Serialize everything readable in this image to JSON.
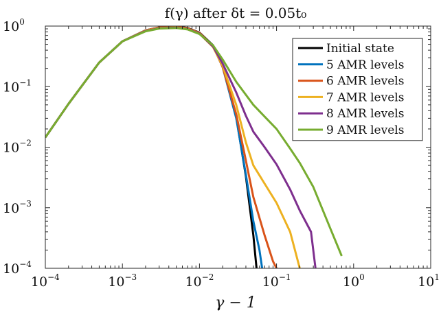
{
  "chart_data": {
    "type": "line",
    "title": "f(γ) after δt = 0.05t₀",
    "xlabel": "γ − 1",
    "ylabel": "",
    "xscale": "log",
    "yscale": "log",
    "xlim": [
      0.0001,
      10
    ],
    "ylim": [
      0.0001,
      1
    ],
    "grid": false,
    "legend_position": "top-right",
    "xticks": [
      {
        "base": "10",
        "exp": "−4"
      },
      {
        "base": "10",
        "exp": "−3"
      },
      {
        "base": "10",
        "exp": "−2"
      },
      {
        "base": "10",
        "exp": "−1"
      },
      {
        "base": "10",
        "exp": "0"
      },
      {
        "base": "10",
        "exp": "1"
      }
    ],
    "yticks": [
      {
        "base": "10",
        "exp": "0"
      },
      {
        "base": "10",
        "exp": "−1"
      },
      {
        "base": "10",
        "exp": "−2"
      },
      {
        "base": "10",
        "exp": "−3"
      },
      {
        "base": "10",
        "exp": "−4"
      }
    ],
    "series": [
      {
        "name": "Initial state",
        "color": "#000000",
        "points": [
          [
            0.0001,
            0.0145
          ],
          [
            0.0002,
            0.052
          ],
          [
            0.0005,
            0.25
          ],
          [
            0.001,
            0.56
          ],
          [
            0.002,
            0.85
          ],
          [
            0.003,
            0.95
          ],
          [
            0.005,
            0.985
          ],
          [
            0.007,
            0.93
          ],
          [
            0.01,
            0.78
          ],
          [
            0.015,
            0.48
          ],
          [
            0.02,
            0.22
          ],
          [
            0.03,
            0.032
          ],
          [
            0.04,
            0.0033
          ],
          [
            0.05,
            0.00035
          ],
          [
            0.055,
            0.0001
          ]
        ]
      },
      {
        "name": "5 AMR levels",
        "color": "#0072BD",
        "points": [
          [
            0.0001,
            0.0145
          ],
          [
            0.0002,
            0.052
          ],
          [
            0.0005,
            0.25
          ],
          [
            0.001,
            0.56
          ],
          [
            0.002,
            0.85
          ],
          [
            0.003,
            0.94
          ],
          [
            0.005,
            0.975
          ],
          [
            0.007,
            0.92
          ],
          [
            0.01,
            0.77
          ],
          [
            0.015,
            0.47
          ],
          [
            0.02,
            0.21
          ],
          [
            0.03,
            0.03
          ],
          [
            0.04,
            0.0035
          ],
          [
            0.05,
            0.0006
          ],
          [
            0.06,
            0.0002
          ],
          [
            0.065,
            0.0001
          ]
        ]
      },
      {
        "name": "6 AMR levels",
        "color": "#D95319",
        "points": [
          [
            0.0001,
            0.0145
          ],
          [
            0.0002,
            0.052
          ],
          [
            0.0005,
            0.25
          ],
          [
            0.001,
            0.56
          ],
          [
            0.002,
            0.85
          ],
          [
            0.003,
            0.95
          ],
          [
            0.005,
            0.98
          ],
          [
            0.007,
            0.92
          ],
          [
            0.01,
            0.77
          ],
          [
            0.015,
            0.47
          ],
          [
            0.02,
            0.21
          ],
          [
            0.03,
            0.035
          ],
          [
            0.04,
            0.006
          ],
          [
            0.05,
            0.0015
          ],
          [
            0.07,
            0.00035
          ],
          [
            0.09,
            0.00013
          ],
          [
            0.1,
            0.0001
          ]
        ]
      },
      {
        "name": "7 AMR levels",
        "color": "#EDB120",
        "points": [
          [
            0.0001,
            0.0145
          ],
          [
            0.0002,
            0.052
          ],
          [
            0.0005,
            0.25
          ],
          [
            0.001,
            0.56
          ],
          [
            0.002,
            0.84
          ],
          [
            0.003,
            0.93
          ],
          [
            0.005,
            0.95
          ],
          [
            0.007,
            0.9
          ],
          [
            0.01,
            0.75
          ],
          [
            0.015,
            0.45
          ],
          [
            0.02,
            0.22
          ],
          [
            0.03,
            0.05
          ],
          [
            0.04,
            0.012
          ],
          [
            0.05,
            0.005
          ],
          [
            0.07,
            0.0025
          ],
          [
            0.1,
            0.0012
          ],
          [
            0.15,
            0.0004
          ],
          [
            0.2,
            0.0001
          ]
        ]
      },
      {
        "name": "8 AMR levels",
        "color": "#7E2F8E",
        "points": [
          [
            0.0001,
            0.0145
          ],
          [
            0.0002,
            0.052
          ],
          [
            0.0005,
            0.25
          ],
          [
            0.001,
            0.56
          ],
          [
            0.002,
            0.83
          ],
          [
            0.003,
            0.92
          ],
          [
            0.005,
            0.94
          ],
          [
            0.007,
            0.89
          ],
          [
            0.01,
            0.75
          ],
          [
            0.015,
            0.46
          ],
          [
            0.02,
            0.24
          ],
          [
            0.03,
            0.08
          ],
          [
            0.04,
            0.033
          ],
          [
            0.05,
            0.018
          ],
          [
            0.07,
            0.01
          ],
          [
            0.1,
            0.0052
          ],
          [
            0.15,
            0.002
          ],
          [
            0.2,
            0.0009
          ],
          [
            0.28,
            0.0004
          ],
          [
            0.32,
            0.0001
          ]
        ]
      },
      {
        "name": "9 AMR levels",
        "color": "#77AC30",
        "points": [
          [
            0.0001,
            0.0145
          ],
          [
            0.0002,
            0.052
          ],
          [
            0.0005,
            0.25
          ],
          [
            0.001,
            0.56
          ],
          [
            0.002,
            0.82
          ],
          [
            0.003,
            0.91
          ],
          [
            0.005,
            0.93
          ],
          [
            0.007,
            0.88
          ],
          [
            0.01,
            0.74
          ],
          [
            0.015,
            0.48
          ],
          [
            0.02,
            0.28
          ],
          [
            0.03,
            0.12
          ],
          [
            0.05,
            0.05
          ],
          [
            0.07,
            0.032
          ],
          [
            0.1,
            0.02
          ],
          [
            0.15,
            0.0095
          ],
          [
            0.2,
            0.0055
          ],
          [
            0.3,
            0.0022
          ],
          [
            0.4,
            0.0009
          ],
          [
            0.5,
            0.00045
          ],
          [
            0.7,
            0.00016
          ]
        ]
      }
    ]
  }
}
